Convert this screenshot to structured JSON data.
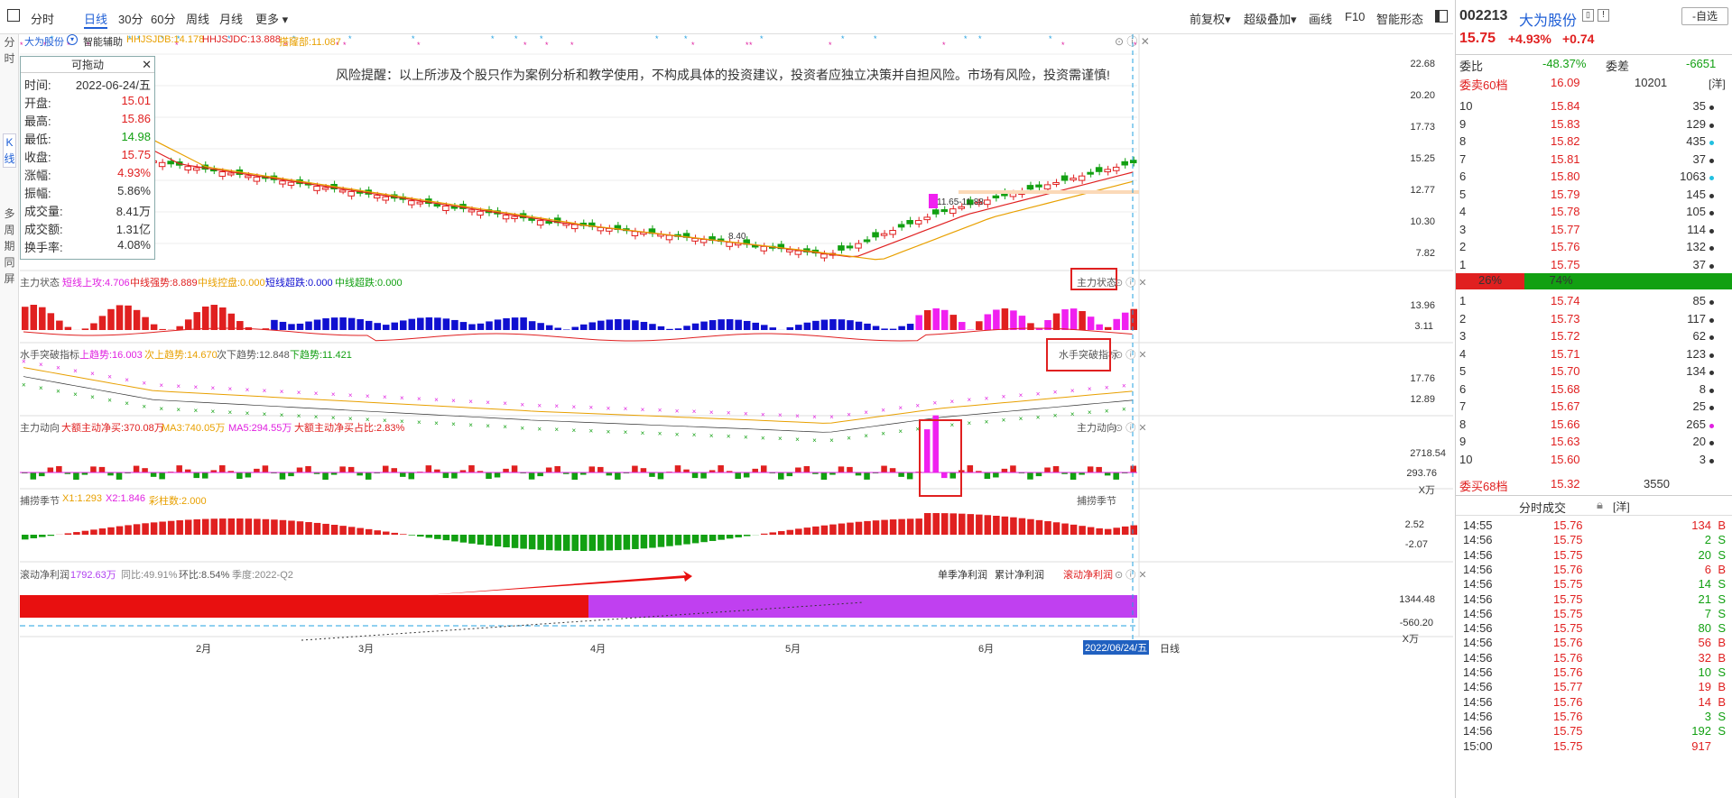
{
  "toolbar": {
    "items": [
      "分时",
      "日线",
      "30分",
      "60分",
      "周线",
      "月线",
      "更多"
    ],
    "right_items": [
      "前复权",
      "超级叠加",
      "画线",
      "F10",
      "智能形态"
    ]
  },
  "left_strip": [
    "分时",
    "K线",
    "多周期同屏"
  ],
  "main_panel": {
    "stock_name": "大为股份",
    "assist": "智能辅助",
    "hhjsjdb": "HHJSJDB:14.178",
    "hhjsjdc": "HHJSJDC:13.888",
    "tailong": "搭窿部:11.087",
    "warning": "风险提醒：以上所涉及个股只作为案例分析和教学使用，不构成具体的投资建议，投资者应独立决策并自担风险。市场有风险，投资需谨慎!",
    "price_axis": [
      "22.68",
      "20.20",
      "17.73",
      "15.25",
      "12.77",
      "10.30",
      "7.82"
    ],
    "annot_range": "11.65-11.88",
    "annot_low": "8.40"
  },
  "dragbox": {
    "title": "可拖动",
    "rows": [
      {
        "k": "时间:",
        "v": "2022-06-24/五",
        "c": "#333"
      },
      {
        "k": "开盘:",
        "v": "15.01",
        "c": "#e02020"
      },
      {
        "k": "最高:",
        "v": "15.86",
        "c": "#e02020"
      },
      {
        "k": "最低:",
        "v": "14.98",
        "c": "#12a012"
      },
      {
        "k": "收盘:",
        "v": "15.75",
        "c": "#e02020"
      },
      {
        "k": "涨幅:",
        "v": "4.93%",
        "c": "#e02020"
      },
      {
        "k": "振幅:",
        "v": "5.86%",
        "c": "#333"
      },
      {
        "k": "成交量:",
        "v": "8.41万",
        "c": "#333"
      },
      {
        "k": "成交额:",
        "v": "1.31亿",
        "c": "#333"
      },
      {
        "k": "换手率:",
        "v": "4.08%",
        "c": "#333"
      }
    ]
  },
  "panels": {
    "zhuli": {
      "name": "主力状态",
      "a": "短线上攻:4.706",
      "b": "中线强势:8.889",
      "c": "中线控盘:0.000",
      "d": "短线超跌:0.000",
      "e": "中线超跌:0.000",
      "tag": "主力状态",
      "axis": [
        "13.96",
        "3.11"
      ]
    },
    "shuishou": {
      "name": "水手突破指标",
      "a": "上趋势:16.003",
      "b": "次上趋势:14.670",
      "c": "次下趋势:12.848",
      "d": "下趋势:11.421",
      "tag": "水手突破指标",
      "axis": [
        "17.76",
        "12.89"
      ]
    },
    "dongxiang": {
      "name": "主力动向",
      "a": "大额主动净买:370.08万",
      "b": "MA3:740.05万",
      "c": "MA5:294.55万",
      "d": "大额主动净买占比:2.83%",
      "tag": "主力动向",
      "axis": [
        "2718.54",
        "293.76",
        "X万"
      ]
    },
    "buzhuo": {
      "name": "捕捞季节",
      "a": "X1:1.293",
      "b": "X2:1.846",
      "c": "彩柱数:2.000",
      "tag": "捕捞季节",
      "axis": [
        "2.52",
        "-2.07"
      ]
    },
    "jinglirun": {
      "name": "滚动净利润",
      "a": "1792.63万",
      "b": "同比:49.91%",
      "c": "环比:8.54%",
      "d": "季度:2022-Q2",
      "tabs": [
        "单季净利润",
        "累计净利润",
        "滚动净利润"
      ],
      "axis": [
        "1344.48",
        "-560.20",
        "X万"
      ]
    }
  },
  "x_axis": {
    "months": [
      "2月",
      "3月",
      "4月",
      "5月",
      "6月"
    ],
    "current": "2022/06/24/五",
    "period": "日线"
  },
  "quote": {
    "code": "002213",
    "name": "大为股份",
    "select": "自选",
    "price": "15.75",
    "pct": "+4.93%",
    "chg": "+0.74",
    "weibi_label": "委比",
    "weibi": "-48.37%",
    "weicha_label": "委差",
    "weicha": "-6651",
    "sell_label": "委卖60档",
    "sell_price": "16.09",
    "sell_vol": "10201",
    "detail": "[洋]",
    "asks": [
      {
        "lvl": "10",
        "p": "15.84",
        "v": "35",
        "dot": "#333"
      },
      {
        "lvl": "9",
        "p": "15.83",
        "v": "129",
        "dot": "#333"
      },
      {
        "lvl": "8",
        "p": "15.82",
        "v": "435",
        "dot": "#22c0e0"
      },
      {
        "lvl": "7",
        "p": "15.81",
        "v": "37",
        "dot": "#333"
      },
      {
        "lvl": "6",
        "p": "15.80",
        "v": "1063",
        "dot": "#22c0e0"
      },
      {
        "lvl": "5",
        "p": "15.79",
        "v": "145",
        "dot": "#333"
      },
      {
        "lvl": "4",
        "p": "15.78",
        "v": "105",
        "dot": "#333"
      },
      {
        "lvl": "3",
        "p": "15.77",
        "v": "114",
        "dot": "#333"
      },
      {
        "lvl": "2",
        "p": "15.76",
        "v": "132",
        "dot": "#333"
      },
      {
        "lvl": "1",
        "p": "15.75",
        "v": "37",
        "dot": "#333"
      }
    ],
    "ratio_sell": "26%",
    "ratio_buy": "74%",
    "bids": [
      {
        "lvl": "1",
        "p": "15.74",
        "v": "85",
        "dot": "#333"
      },
      {
        "lvl": "2",
        "p": "15.73",
        "v": "117",
        "dot": "#333"
      },
      {
        "lvl": "3",
        "p": "15.72",
        "v": "62",
        "dot": "#333"
      },
      {
        "lvl": "4",
        "p": "15.71",
        "v": "123",
        "dot": "#333"
      },
      {
        "lvl": "5",
        "p": "15.70",
        "v": "134",
        "dot": "#333"
      },
      {
        "lvl": "6",
        "p": "15.68",
        "v": "8",
        "dot": "#333"
      },
      {
        "lvl": "7",
        "p": "15.67",
        "v": "25",
        "dot": "#333"
      },
      {
        "lvl": "8",
        "p": "15.66",
        "v": "265",
        "dot": "#e020e0"
      },
      {
        "lvl": "9",
        "p": "15.63",
        "v": "20",
        "dot": "#333"
      },
      {
        "lvl": "10",
        "p": "15.60",
        "v": "3",
        "dot": "#333"
      }
    ],
    "buy_label": "委买68档",
    "buy_price": "15.32",
    "buy_vol": "3550",
    "ticks_title": "分时成交",
    "ticks_detail": "[洋]",
    "ticks": [
      {
        "t": "14:55",
        "p": "15.76",
        "v": "134",
        "s": "B"
      },
      {
        "t": "14:56",
        "p": "15.75",
        "v": "2",
        "s": "S"
      },
      {
        "t": "14:56",
        "p": "15.75",
        "v": "20",
        "s": "S"
      },
      {
        "t": "14:56",
        "p": "15.76",
        "v": "6",
        "s": "B"
      },
      {
        "t": "14:56",
        "p": "15.75",
        "v": "14",
        "s": "S"
      },
      {
        "t": "14:56",
        "p": "15.75",
        "v": "21",
        "s": "S"
      },
      {
        "t": "14:56",
        "p": "15.75",
        "v": "7",
        "s": "S"
      },
      {
        "t": "14:56",
        "p": "15.75",
        "v": "80",
        "s": "S"
      },
      {
        "t": "14:56",
        "p": "15.76",
        "v": "56",
        "s": "B"
      },
      {
        "t": "14:56",
        "p": "15.76",
        "v": "32",
        "s": "B"
      },
      {
        "t": "14:56",
        "p": "15.76",
        "v": "10",
        "s": "S"
      },
      {
        "t": "14:56",
        "p": "15.77",
        "v": "19",
        "s": "B"
      },
      {
        "t": "14:56",
        "p": "15.76",
        "v": "14",
        "s": "B"
      },
      {
        "t": "14:56",
        "p": "15.76",
        "v": "3",
        "s": "S"
      },
      {
        "t": "14:56",
        "p": "15.75",
        "v": "192",
        "s": "S"
      },
      {
        "t": "15:00",
        "p": "15.75",
        "v": "917",
        "s": ""
      }
    ]
  }
}
